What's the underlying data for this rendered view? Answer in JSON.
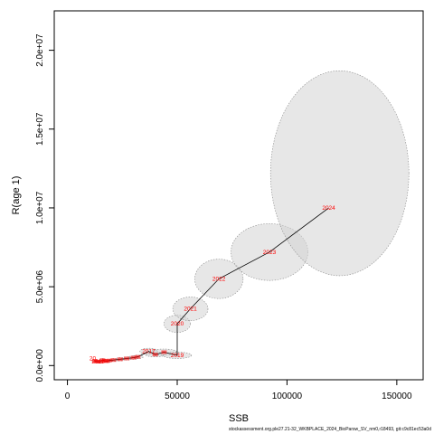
{
  "chart_data": {
    "type": "scatter",
    "xlabel": "SSB",
    "ylabel": "R(age 1)",
    "xlim": [
      -6000,
      162000
    ],
    "ylim": [
      -900000,
      22500000
    ],
    "x_ticks": [
      0,
      50000,
      100000,
      150000
    ],
    "x_tick_labels": [
      "0",
      "50000",
      "100000",
      "150000"
    ],
    "y_ticks": [
      0,
      5000000,
      10000000,
      15000000,
      20000000
    ],
    "y_tick_labels": [
      "0.0e+00",
      "5.0e+06",
      "1.0e+07",
      "1.5e+07",
      "2.0e+07"
    ],
    "grid": false,
    "points": [
      {
        "label": "",
        "ssb": 12500,
        "rec": 300000,
        "ell_w": 2500,
        "ell_h": 150000
      },
      {
        "label": "",
        "ssb": 13500,
        "rec": 250000,
        "ell_w": 2500,
        "ell_h": 150000
      },
      {
        "label": "",
        "ssb": 15000,
        "rec": 250000,
        "ell_w": 2500,
        "ell_h": 150000
      },
      {
        "label": "",
        "ssb": 16000,
        "rec": 350000,
        "ell_w": 3000,
        "ell_h": 170000
      },
      {
        "label": "",
        "ssb": 17000,
        "rec": 300000,
        "ell_w": 3000,
        "ell_h": 170000
      },
      {
        "label": "",
        "ssb": 18000,
        "rec": 280000,
        "ell_w": 3000,
        "ell_h": 170000
      },
      {
        "label": "",
        "ssb": 19000,
        "rec": 320000,
        "ell_w": 3000,
        "ell_h": 170000
      },
      {
        "label": "",
        "ssb": 21000,
        "rec": 350000,
        "ell_w": 4000,
        "ell_h": 180000
      },
      {
        "label": "",
        "ssb": 24000,
        "rec": 400000,
        "ell_w": 4000,
        "ell_h": 200000
      },
      {
        "label": "",
        "ssb": 27000,
        "rec": 450000,
        "ell_w": 4500,
        "ell_h": 200000
      },
      {
        "label": "",
        "ssb": 30000,
        "rec": 500000,
        "ell_w": 5000,
        "ell_h": 220000
      },
      {
        "label": "",
        "ssb": 32000,
        "rec": 550000,
        "ell_w": 5000,
        "ell_h": 220000
      },
      {
        "label": "2017",
        "ssb": 37000,
        "rec": 900000,
        "ell_w": 8000,
        "ell_h": 400000
      },
      {
        "label": "",
        "ssb": 40000,
        "rec": 700000,
        "ell_w": 9000,
        "ell_h": 300000
      },
      {
        "label": "",
        "ssb": 44000,
        "rec": 850000,
        "ell_w": 12000,
        "ell_h": 400000
      },
      {
        "label": "2019",
        "ssb": 50000,
        "rec": 650000,
        "ell_w": 13000,
        "ell_h": 400000
      },
      {
        "label": "2020",
        "ssb": 50000,
        "rec": 2650000,
        "ell_w": 12000,
        "ell_h": 1100000
      },
      {
        "label": "2021",
        "ssb": 56000,
        "rec": 3600000,
        "ell_w": 16000,
        "ell_h": 1500000
      },
      {
        "label": "2022",
        "ssb": 69000,
        "rec": 5500000,
        "ell_w": 22000,
        "ell_h": 2500000
      },
      {
        "label": "2023",
        "ssb": 92000,
        "rec": 7200000,
        "ell_w": 35000,
        "ell_h": 3600000
      },
      {
        "label": "2024",
        "ssb": 119000,
        "rec": 10000000,
        "ell_w": 63000,
        "ell_h": 13000000
      }
    ],
    "extra_labels": [
      {
        "text": "20",
        "ssb": 11500,
        "rec": 450000
      },
      {
        "text": "2013",
        "ssb": 14000,
        "rec": 250000
      }
    ],
    "colors": {
      "ellipse_fill": "#d3d3d3",
      "ellipse_stroke": "#8a8a8a",
      "path_line": "#000000",
      "point_label": "#ff0000"
    }
  },
  "footer": {
    "text": "stockassessment.org.ple27.21-32_WKBPLACE_2024_BioParsw_SV_nm0,r18493, git:c9c81ec53a0d"
  }
}
